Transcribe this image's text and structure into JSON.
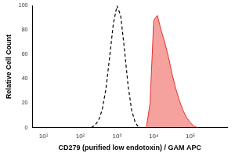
{
  "chart_data": {
    "type": "line",
    "x_label": "CD279 (purified low endotoxin) / GAM APC",
    "y_label": "Relative Cell Count",
    "x": [
      100,
      126,
      158,
      200,
      251,
      316,
      398,
      501,
      631,
      794,
      1000,
      1259,
      1585,
      1995,
      2512,
      3162,
      3981,
      5012,
      6310,
      7943,
      10000,
      12589,
      15849,
      19953,
      25119,
      31623,
      39811,
      50119,
      63096,
      79433,
      100000,
      125893,
      158489
    ],
    "series": [
      {
        "color": "#000000",
        "line_style": "dashed",
        "values": [
          null,
          null,
          null,
          0,
          2,
          6,
          15,
          32,
          58,
          85,
          100,
          92,
          65,
          35,
          14,
          4,
          0,
          null,
          null,
          null,
          null,
          null,
          null,
          null,
          null,
          null,
          null,
          null,
          null,
          null,
          null,
          null,
          null
        ]
      },
      {
        "color": "#e8302a",
        "line_style": "solid",
        "values": [
          null,
          null,
          null,
          null,
          null,
          null,
          null,
          null,
          null,
          null,
          null,
          null,
          null,
          null,
          null,
          null,
          null,
          null,
          0,
          20,
          88,
          92,
          80,
          70,
          58,
          44,
          32,
          22,
          14,
          8,
          4,
          1,
          0
        ]
      }
    ],
    "log": "x",
    "xlim": [
      5,
      1000000
    ],
    "xticks": [
      {
        "value": 10,
        "label": "10¹"
      },
      {
        "value": 100,
        "label": "10²"
      },
      {
        "value": 1000,
        "label": "10³"
      },
      {
        "value": 10000,
        "label": "10⁴"
      },
      {
        "value": 100000,
        "label": "10⁵"
      }
    ],
    "ylim": [
      0,
      100
    ],
    "yticks": [
      0,
      20,
      40,
      60,
      80,
      100
    ],
    "grid": false
  }
}
